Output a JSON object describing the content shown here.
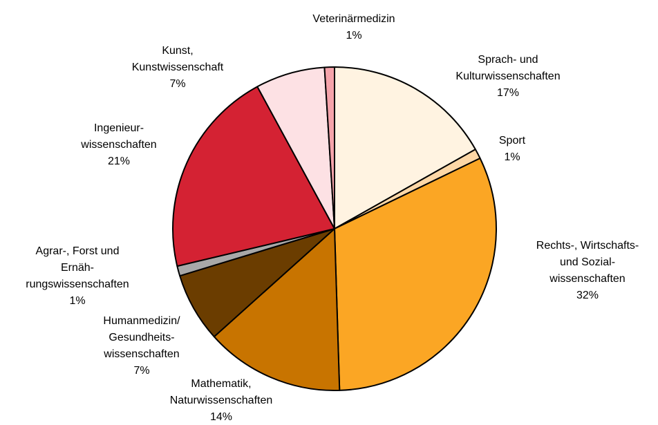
{
  "chart_data": {
    "type": "pie",
    "categories": [
      [
        "Sprach- und",
        "Kulturwissenschaften"
      ],
      [
        "Sport"
      ],
      [
        "Rechts-, Wirtschafts-",
        "und Sozial-",
        "wissenschaften"
      ],
      [
        "Mathematik,",
        "Naturwissenschaften"
      ],
      [
        "Humanmedizin/",
        "Gesundheits-",
        "wissenschaften"
      ],
      [
        "Agrar-, Forst und",
        "Ernäh-",
        "rungswissenschaften"
      ],
      [
        "Ingenieur-",
        "wissenschaften"
      ],
      [
        "Kunst,",
        "Kunstwissenschaft"
      ],
      [
        "Veterinärmedizin"
      ]
    ],
    "values": [
      17,
      1,
      32,
      14,
      7,
      1,
      21,
      7,
      1
    ],
    "value_labels": [
      "17%",
      "1%",
      "32%",
      "14%",
      "7%",
      "1%",
      "21%",
      "7%",
      "1%"
    ],
    "colors": [
      "#fff3e1",
      "#fdd7a6",
      "#fba624",
      "#c87400",
      "#6b3d00",
      "#a8a8a8",
      "#d42233",
      "#fde1e4",
      "#f5a3aa"
    ]
  }
}
